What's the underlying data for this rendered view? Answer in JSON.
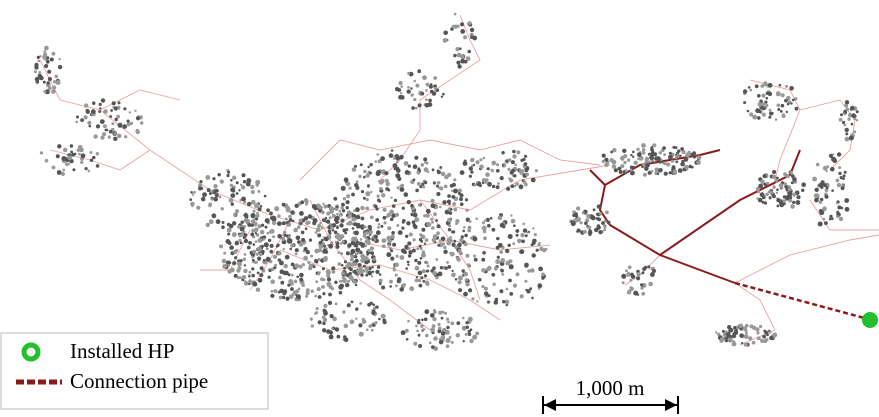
{
  "legend": {
    "items": [
      {
        "label": "Installed HP"
      },
      {
        "label": "Connection pipe"
      }
    ]
  },
  "scale_bar": {
    "label": "1,000 m"
  }
}
